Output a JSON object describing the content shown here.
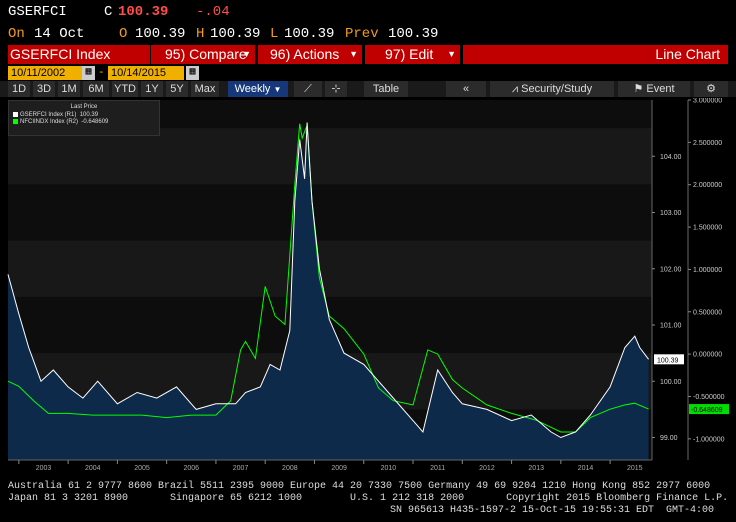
{
  "header": {
    "ticker": "GSERFCI",
    "close_label": "C",
    "close_value": "100.39",
    "change": "-.04",
    "date_label": "On",
    "date": "14 Oct",
    "open_label": "O",
    "open": "100.39",
    "high_label": "H",
    "high": "100.39",
    "low_label": "L",
    "low": "100.39",
    "prev_label": "Prev",
    "prev": "100.39"
  },
  "toolbar": {
    "title": "GSERFCI Index",
    "compare": "95) Compare",
    "actions": "96) Actions",
    "edit": "97) Edit",
    "view": "Line Chart"
  },
  "range": {
    "start": "10/11/2002",
    "end": "10/14/2015"
  },
  "periods": [
    "1D",
    "3D",
    "1M",
    "6M",
    "YTD",
    "1Y",
    "5Y",
    "Max"
  ],
  "frequency": "Weekly",
  "controls": {
    "table": "Table",
    "security_study": "Security/Study",
    "event": "Event"
  },
  "colors": {
    "accent": "#c00000",
    "date_bg": "#f0b000",
    "series1": "#ffffff",
    "series2": "#00ff00",
    "area": "#0e2a4a"
  },
  "chart_data": {
    "type": "line",
    "legend_title": "Last Price",
    "legend_placement": "top-left",
    "series": [
      {
        "name": "GSERFCI Index (R1)",
        "last": "100.39",
        "axis": "right-inner",
        "x": [
          2002.78,
          2003.0,
          2003.2,
          2003.45,
          2003.7,
          2004.0,
          2004.3,
          2004.6,
          2005.0,
          2005.4,
          2005.8,
          2006.2,
          2006.6,
          2007.0,
          2007.4,
          2007.6,
          2007.9,
          2008.1,
          2008.3,
          2008.5,
          2008.6,
          2008.7,
          2008.8,
          2008.85,
          2008.95,
          2009.1,
          2009.3,
          2009.6,
          2010.0,
          2010.5,
          2011.0,
          2011.2,
          2011.5,
          2011.8,
          2012.0,
          2012.5,
          2013.0,
          2013.4,
          2013.8,
          2014.0,
          2014.3,
          2014.6,
          2015.0,
          2015.3,
          2015.5,
          2015.6,
          2015.78
        ],
        "y": [
          101.9,
          101.2,
          100.6,
          100.0,
          100.2,
          99.9,
          99.7,
          100.0,
          99.6,
          99.8,
          99.7,
          99.9,
          99.5,
          99.6,
          99.6,
          99.8,
          99.9,
          100.3,
          100.2,
          100.9,
          103.2,
          104.3,
          103.6,
          104.6,
          103.2,
          102.0,
          101.1,
          100.5,
          100.3,
          99.8,
          99.3,
          99.1,
          100.2,
          99.8,
          99.6,
          99.5,
          99.3,
          99.4,
          99.1,
          99.0,
          99.1,
          99.4,
          99.9,
          100.6,
          100.8,
          100.6,
          100.39
        ]
      },
      {
        "name": "NFCIINDX Index (R2)",
        "last": "-0.648609",
        "axis": "right-outer",
        "x": [
          2002.78,
          2003.0,
          2003.3,
          2003.6,
          2004.0,
          2004.5,
          2005.0,
          2005.5,
          2006.0,
          2006.5,
          2007.0,
          2007.3,
          2007.5,
          2007.6,
          2007.8,
          2008.0,
          2008.2,
          2008.4,
          2008.6,
          2008.7,
          2008.75,
          2008.85,
          2008.95,
          2009.1,
          2009.3,
          2009.6,
          2010.0,
          2010.3,
          2010.6,
          2011.0,
          2011.3,
          2011.5,
          2011.8,
          2012.0,
          2012.5,
          2013.0,
          2013.5,
          2014.0,
          2014.3,
          2014.6,
          2015.0,
          2015.3,
          2015.5,
          2015.78
        ],
        "y": [
          -0.32,
          -0.38,
          -0.55,
          -0.7,
          -0.7,
          -0.72,
          -0.72,
          -0.72,
          -0.75,
          -0.72,
          -0.72,
          -0.55,
          0.05,
          0.15,
          -0.05,
          0.8,
          0.45,
          0.35,
          2.0,
          2.72,
          2.55,
          2.7,
          1.8,
          0.9,
          0.45,
          0.3,
          0.0,
          -0.4,
          -0.55,
          -0.6,
          0.05,
          0.0,
          -0.3,
          -0.4,
          -0.6,
          -0.7,
          -0.78,
          -0.92,
          -0.92,
          -0.75,
          -0.65,
          -0.6,
          -0.58,
          -0.648609
        ]
      }
    ],
    "x_ticks": [
      "2003",
      "2004",
      "2005",
      "2006",
      "2007",
      "2008",
      "2009",
      "2010",
      "2011",
      "2012",
      "2013",
      "2014",
      "2015"
    ],
    "y1_ticks": [
      "104.00",
      "103.00",
      "102.00",
      "101.00",
      "100.00",
      "99.00"
    ],
    "y1_range": [
      98.6,
      105.0
    ],
    "y2_ticks": [
      "3.000000",
      "2.500000",
      "2.000000",
      "1.500000",
      "1.000000",
      "0.500000",
      "0.000000",
      "-0.500000",
      "-1.000000"
    ],
    "y2_range": [
      -1.25,
      3.0
    ]
  },
  "footer": {
    "line1": "Australia 61 2 9777 8600 Brazil 5511 2395 9000 Europe 44 20 7330 7500 Germany 49 69 9204 1210 Hong Kong 852 2977 6000",
    "line2": "Japan 81 3 3201 8900       Singapore 65 6212 1000        U.S. 1 212 318 2000       Copyright 2015 Bloomberg Finance L.P.",
    "line3": "SN 965613 H435-1597-2 15-Oct-15 19:55:31 EDT  GMT-4:00"
  }
}
